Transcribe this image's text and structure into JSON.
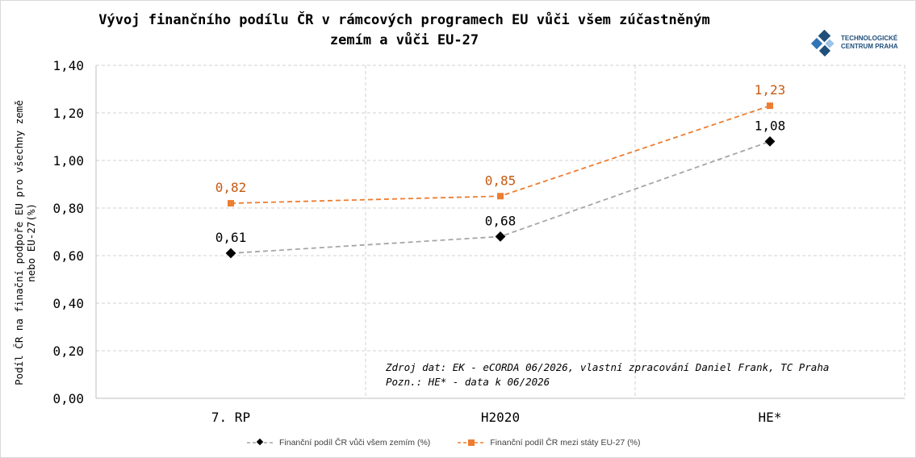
{
  "chart_data": {
    "type": "line",
    "title": "Vývoj finančního podílu ČR v rámcových programech EU vůči všem zúčastněným zemím a vůči EU-27",
    "title_lines": [
      "Vývoj finančního podílu ČR v rámcových programech EU vůči všem zúčastněným",
      "zemím a vůči EU-27"
    ],
    "ylabel_lines": [
      "Podíl ČR na finační podpoře EU pro všechny země",
      "nebo EU-27(%)"
    ],
    "xlabel": "",
    "categories": [
      "7. RP",
      "H2020",
      "HE*"
    ],
    "ylim": [
      0,
      1.4
    ],
    "yticks": [
      "0,00",
      "0,20",
      "0,40",
      "0,60",
      "0,80",
      "1,00",
      "1,20",
      "1,40"
    ],
    "grid": true,
    "legend_position": "bottom",
    "series": [
      {
        "name": "Finanční podíl ČR vůči všem zemím (%)",
        "values": [
          0.61,
          0.68,
          1.08
        ],
        "labels": [
          "0,61",
          "0,68",
          "1,08"
        ],
        "color": "#a6a6a6",
        "marker": "diamond",
        "marker_color": "#000000",
        "label_color": "#000000"
      },
      {
        "name": "Finanční podíl ČR mezi státy EU-27 (%)",
        "values": [
          0.82,
          0.85,
          1.23
        ],
        "labels": [
          "0,82",
          "0,85",
          "1,23"
        ],
        "color": "#ed7d31",
        "marker": "square",
        "marker_color": "#ed7d31",
        "label_color": "#c55a11"
      }
    ],
    "annotation_lines": [
      "Zdroj dat: EK - eCORDA 06/2026, vlastní zpracování  Daniel Frank, TC Praha",
      "Pozn.: HE* - data k 06/2026"
    ]
  },
  "logo": {
    "line1": "TECHNOLOGICKÉ",
    "line2": "CENTRUM PRAHA",
    "color": "#1f4e79"
  }
}
